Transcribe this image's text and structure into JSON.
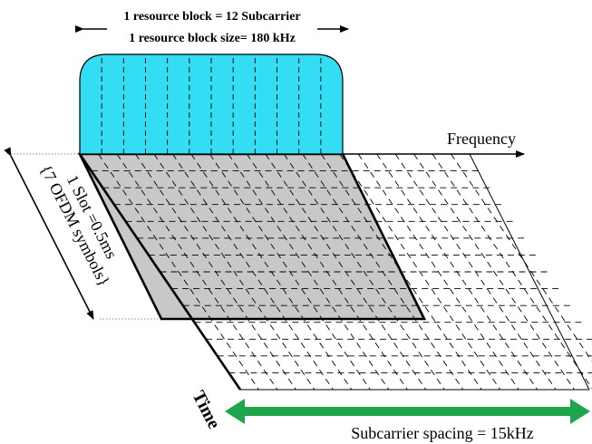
{
  "labels": {
    "rb_line1": "1 resource block = 12 Subcarrier",
    "rb_line2": "1 resource block size= 180 kHz",
    "frequency": "Frequency",
    "slot_line1": "1 Slot =0.5ms",
    "slot_line2": "{7 OFDM symbols}",
    "time": "Time",
    "spacing": "Subcarrier spacing = 15kHz"
  },
  "grid": {
    "subcarriers_total": 21,
    "symbol_rows_total": 14,
    "resource_block_subcarriers": 12,
    "slot_symbols": 7
  },
  "colors": {
    "rb_fill": "#33ddf4",
    "slot_fill": "#c8c8c8",
    "spacing_arrow": "#1fa54c",
    "line": "#000000"
  }
}
